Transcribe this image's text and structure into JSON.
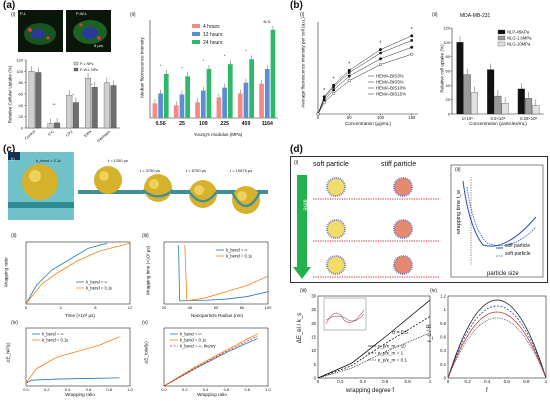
{
  "panels": {
    "a": {
      "letter": "(a)",
      "micro": {
        "sublabel": "(i)",
        "images": [
          {
            "label": "P-L"
          },
          {
            "label": "P-W-L"
          }
        ],
        "scalebar": "5 μm"
      },
      "uptake_bar": {
        "ylabel": "Relative Cellular Uptake (%)",
        "legend": [
          "P-L NPs",
          "P-W-L NPs"
        ],
        "categories": [
          "Control",
          "4°C",
          "CPZ",
          "EIPA",
          "Genistein"
        ],
        "ticks": [
          "0",
          "20",
          "40",
          "60",
          "80",
          "100",
          "120"
        ],
        "series": [
          {
            "name": "P-L NPs",
            "values": [
              100,
              8,
              58,
              88,
              80
            ]
          },
          {
            "name": "P-W-L NPs",
            "values": [
              98,
              9,
              45,
              72,
              75
            ]
          }
        ],
        "sig": [
          "**",
          "*",
          "*"
        ]
      },
      "time_bar": {
        "sublabel": "(ii)",
        "ylabel": "Median fluorescence intensity",
        "xlabel": "Young's modulus (MPa)",
        "legend": [
          "4 hours",
          "12 hours",
          "24 hours"
        ],
        "colors": [
          "#f28a8a",
          "#5a8fd0",
          "#2fb86a"
        ],
        "categories": [
          "0.56",
          "25",
          "109",
          "225",
          "459",
          "1164"
        ],
        "series": [
          {
            "name": "4 hours",
            "values": [
              300,
              260,
              320,
              420,
              500,
              700
            ]
          },
          {
            "name": "12 hours",
            "values": [
              500,
              480,
              560,
              620,
              720,
              1000
            ]
          },
          {
            "name": "24 hours",
            "values": [
              900,
              850,
              1000,
              1100,
              1200,
              1800
            ]
          }
        ],
        "sig": [
          "*",
          "*",
          "*",
          "*",
          "*",
          "N.S."
        ]
      }
    },
    "b": {
      "letter": "(b)",
      "line_chart": {
        "sublabel": "(i)",
        "ylabel": "Average fluorescence intensity per cell (a.u.)",
        "xlabel": "Concentration (μg/mL)",
        "xticks": [
          "0",
          "50",
          "100",
          "150"
        ],
        "legend": [
          "HEMA-BIS3%",
          "HEMA-BIS5%",
          "HEMA-BIS10%",
          "HEMA-BIS15%"
        ],
        "series": [
          {
            "name": "HEMA-BIS3%",
            "x": [
              0,
              10,
              25,
              50,
              100,
              150
            ],
            "y": [
              0,
              150,
              250,
              380,
              560,
              680
            ]
          },
          {
            "name": "HEMA-BIS5%",
            "x": [
              0,
              10,
              25,
              50,
              100,
              150
            ],
            "y": [
              0,
              140,
              235,
              360,
              530,
              640
            ]
          },
          {
            "name": "HEMA-BIS10%",
            "x": [
              0,
              10,
              25,
              50,
              100,
              150
            ],
            "y": [
              0,
              120,
              210,
              330,
              480,
              580
            ]
          },
          {
            "name": "HEMA-BIS15%",
            "x": [
              0,
              10,
              25,
              50,
              100,
              150
            ],
            "y": [
              0,
              100,
              180,
              290,
              430,
              520
            ]
          }
        ],
        "sig": [
          "*",
          "*",
          "*",
          "*",
          "*"
        ]
      },
      "bar_chart": {
        "sublabel": "(ii)",
        "title": "MDA-MB-231",
        "ylabel": "Relative cell uptake (%)",
        "xlabel": "Concentration (particles/mL)",
        "categories": [
          "1×10⁸",
          "0.5×10⁸",
          "0.25×10⁸"
        ],
        "ticks": [
          "0",
          "20",
          "40",
          "60",
          "80",
          "100",
          "120"
        ],
        "legend": [
          "NLP-45KPa",
          "NLG-1.6MPa",
          "NLG-10MPa"
        ],
        "colors": [
          "#111111",
          "#9a9a9a",
          "#e0e0e0"
        ],
        "series": [
          {
            "name": "NLP-45KPa",
            "values": [
              100,
              62,
              35
            ]
          },
          {
            "name": "NLG-1.6MPa",
            "values": [
              55,
              25,
              22
            ]
          },
          {
            "name": "NLG-10MPa",
            "values": [
              30,
              15,
              12
            ]
          }
        ]
      }
    },
    "c": {
      "letter": "(c)",
      "sim": {
        "sublabel": "(i)",
        "kbend_label": "k_bend = 0.1ε",
        "times": [
          "t = 1250 μs",
          "t = 3750 μs",
          "t = 8750 μs",
          "t = 10875 μs"
        ]
      },
      "wrap_time": {
        "sublabel": "(ii)",
        "ylabel": "Wrapping ratio",
        "xlabel": "Time (×10³ μs)",
        "legend": [
          "k_bend = ∞",
          "k_bend = 0.1ε"
        ],
        "colors": [
          "#1f77b4",
          "#ff7f0e"
        ]
      },
      "radius": {
        "sublabel": "(iii)",
        "ylabel": "Wrapping time (×10³ μs)",
        "xlabel": "Nanoparticle Radius (nm)",
        "legend": [
          "k_bend = ∞",
          "k_bend = 0.1ε"
        ]
      },
      "energy_iv": {
        "sublabel": "(iv)",
        "ylabel": "ΔE_NP(ε)",
        "xlabel": "Wrapping ratio",
        "legend": [
          "k_bend = ∞",
          "k_bend = 0.1ε"
        ]
      },
      "energy_v": {
        "sublabel": "(v)",
        "ylabel": "ΔE_total(ε)",
        "xlabel": "Wrapping ratio",
        "legend": [
          "k_bend = ∞",
          "k_bend = 0.1ε",
          "k_bend = ∞, theory"
        ]
      }
    },
    "d": {
      "letter": "(d)",
      "scheme": {
        "sublabel": "(i)",
        "soft": "soft particle",
        "stiff": "stiff particle",
        "time": "time"
      },
      "wrap_plot": {
        "sublabel": "(ii)",
        "ylabel": "wrapping time t_w",
        "xlabel": "particle size",
        "legend": [
          "stiff particle",
          "soft particle"
        ]
      },
      "energy_plot": {
        "sublabel": "(iii)",
        "ylabel": "ΔE_el / k_s",
        "xlabel": "wrapping degree f",
        "sigma": "σ̄ = 0.5",
        "legend": [
          "κ_p/κ_m = 10",
          "κ_p/κ_m = 1",
          "κ_p/κ_m = 0.1"
        ]
      },
      "shape_plot": {
        "sublabel": "(iv)",
        "ylabel": "r_c / R",
        "xlabel": "f"
      }
    }
  }
}
